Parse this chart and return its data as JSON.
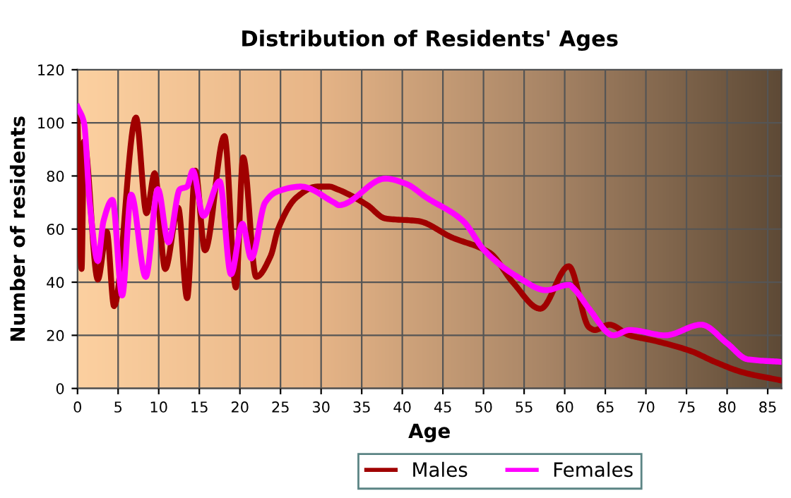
{
  "chart_data": {
    "type": "line",
    "title": "Distribution of Residents' Ages",
    "xlabel": "Age",
    "ylabel": "Number of residents",
    "xlim": [
      0,
      86.7
    ],
    "xticks": [
      0,
      5,
      10,
      15,
      20,
      25,
      30,
      35,
      40,
      45,
      50,
      55,
      60,
      65,
      70,
      75,
      80,
      85
    ],
    "ylim": [
      0,
      120
    ],
    "yticks": [
      0,
      20,
      40,
      60,
      80,
      100,
      120
    ],
    "grid": true,
    "legend": "bottom",
    "line_style": "solid",
    "marker": "none",
    "series": [
      {
        "name": "Males",
        "color": "#a00000",
        "x": [
          0,
          0.5,
          0.8,
          2.5,
          3.6,
          4.5,
          7.2,
          8.5,
          9.5,
          10.8,
          12.4,
          13.5,
          14.5,
          15.7,
          18.1,
          19.5,
          20.4,
          22,
          23.8,
          24.7,
          27,
          29.5,
          31,
          32,
          35.7,
          37.9,
          42,
          46,
          50.8,
          53.6,
          57,
          60.5,
          63,
          63.7,
          65.5,
          68,
          71,
          75.6,
          78.5,
          82,
          86.7
        ],
        "values": [
          102,
          45,
          93,
          41,
          59,
          31,
          102,
          66,
          81,
          45,
          68,
          34,
          82,
          52,
          95,
          38,
          87,
          42,
          50,
          60,
          72,
          76,
          76,
          75,
          69,
          64,
          63,
          57,
          51,
          40,
          30,
          46,
          23,
          22,
          24,
          20,
          18,
          14,
          10,
          6,
          3
        ]
      },
      {
        "name": "Females",
        "color": "#ff00ff",
        "x": [
          0,
          0.8,
          1.5,
          2.5,
          3.2,
          4.3,
          5.5,
          6.6,
          8.4,
          9.9,
          11.2,
          12.6,
          13.5,
          14.2,
          15.5,
          17.5,
          18.9,
          20.3,
          21.4,
          23.1,
          24.5,
          27.5,
          31.6,
          32.2,
          37.9,
          40.5,
          42.9,
          47.5,
          50.1,
          54.2,
          57.7,
          60.5,
          61.3,
          63,
          66,
          68,
          72.4,
          76.8,
          80,
          82.5,
          86.7
        ],
        "values": [
          106,
          100,
          70,
          48,
          63,
          71,
          35,
          73,
          42,
          75,
          55,
          75,
          76,
          82,
          65,
          78,
          43,
          62,
          49,
          70,
          74,
          76,
          70,
          69,
          79,
          77,
          72,
          63,
          52,
          42,
          37,
          39,
          37,
          30,
          20,
          22,
          20,
          24,
          17,
          11,
          10
        ]
      }
    ]
  }
}
